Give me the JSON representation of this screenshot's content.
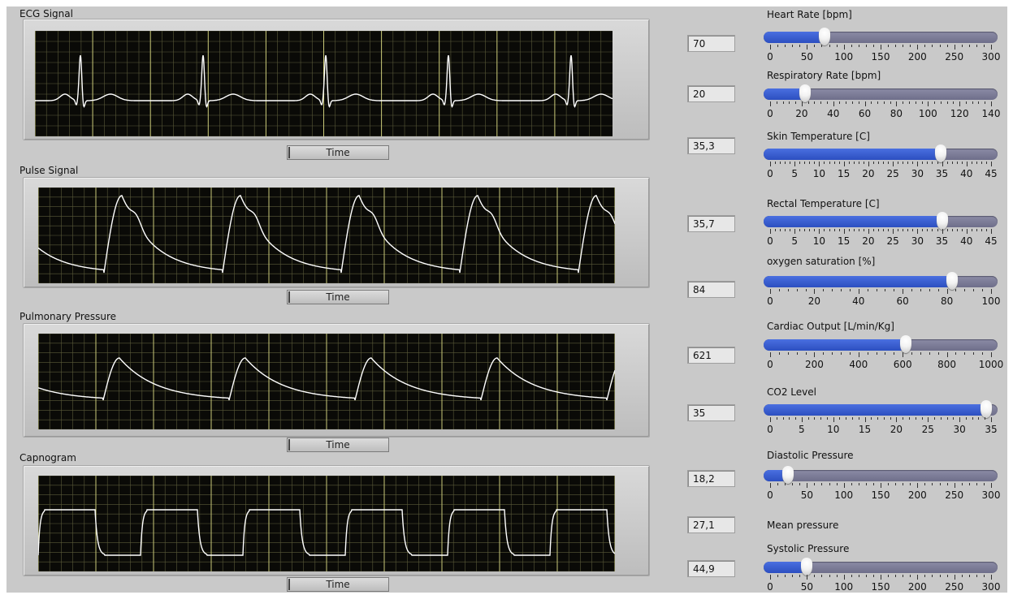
{
  "charts": [
    {
      "id": "ecg",
      "title": "ECG Signal",
      "button": "Time"
    },
    {
      "id": "pulse",
      "title": "Pulse Signal",
      "button": "Time"
    },
    {
      "id": "pulmonary",
      "title": "Pulmonary Pressure",
      "button": "Time"
    },
    {
      "id": "capnogram",
      "title": "Capnogram",
      "button": "Time"
    }
  ],
  "sliders": [
    {
      "label": "Heart  Rate [bpm]",
      "display": "70",
      "value": 70,
      "min": 0,
      "max": 300,
      "ticks": [
        "0",
        "50",
        "100",
        "150",
        "200",
        "250",
        "300"
      ]
    },
    {
      "label": "Respiratory Rate [bpm]",
      "display": "20",
      "value": 20,
      "min": 0,
      "max": 140,
      "ticks": [
        "0",
        "20",
        "40",
        "60",
        "80",
        "100",
        "120",
        "140"
      ]
    },
    {
      "label": "Skin Temperature  [C]",
      "display": "35,3",
      "value": 35.3,
      "min": 0,
      "max": 45,
      "ticks": [
        "0",
        "5",
        "10",
        "15",
        "20",
        "25",
        "30",
        "35",
        "40",
        "45"
      ]
    },
    {
      "label": "Rectal Temperature [C]",
      "display": "35,7",
      "value": 35.7,
      "min": 0,
      "max": 45,
      "ticks": [
        "0",
        "5",
        "10",
        "15",
        "20",
        "25",
        "30",
        "35",
        "40",
        "45"
      ]
    },
    {
      "label": "oxygen saturation [%]",
      "display": "84",
      "value": 84,
      "min": 0,
      "max": 100,
      "ticks": [
        "0",
        "20",
        "40",
        "60",
        "80",
        "100"
      ]
    },
    {
      "label": "Cardiac Output [L/min/Kg]",
      "display": "621",
      "value": 621,
      "min": 0,
      "max": 1000,
      "ticks": [
        "0",
        "200",
        "400",
        "600",
        "800",
        "1000"
      ]
    },
    {
      "label": "CO2 Level",
      "display": "35",
      "value": 35,
      "min": 0,
      "max": 35,
      "ticks": [
        "0",
        "5",
        "10",
        "15",
        "20",
        "25",
        "30",
        "35"
      ]
    },
    {
      "label": "Diastolic Pressure",
      "display": "18,2",
      "value": 18.2,
      "min": 0,
      "max": 300,
      "ticks": [
        "0",
        "50",
        "100",
        "150",
        "200",
        "250",
        "300"
      ]
    },
    {
      "label": "Systolic Pressure",
      "display": "44,9",
      "value": 44.9,
      "min": 0,
      "max": 300,
      "ticks": [
        "0",
        "50",
        "100",
        "150",
        "200",
        "250",
        "300"
      ]
    }
  ],
  "mean_pressure": {
    "label": "Mean pressure",
    "value": "27,1"
  },
  "colors": {
    "trace": "#ffffff",
    "grid": "#c8c878",
    "plot_bg": "#0a0a07",
    "fill": "#2c4fc0",
    "track": "#7a7a96"
  }
}
